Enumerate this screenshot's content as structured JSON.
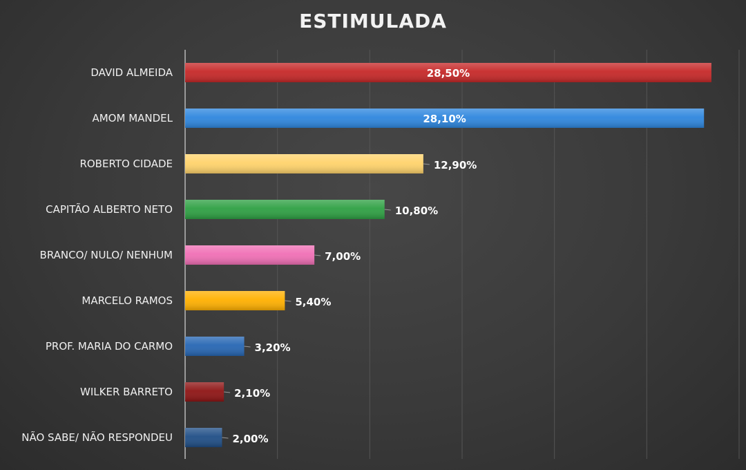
{
  "chart_data": {
    "type": "bar",
    "orientation": "horizontal",
    "title": "ESTIMULADA",
    "categories": [
      "DAVID ALMEIDA",
      "AMOM MANDEL",
      "ROBERTO CIDADE",
      "CAPITÃO ALBERTO NETO",
      "BRANCO/ NULO/ NENHUM",
      "MARCELO RAMOS",
      "PROF. MARIA DO CARMO",
      "WILKER BARRETO",
      "NÃO SABE/ NÃO RESPONDEU"
    ],
    "values": [
      28.5,
      28.1,
      12.9,
      10.8,
      7.0,
      5.4,
      3.2,
      2.1,
      2.0
    ],
    "value_labels": [
      "28,50%",
      "28,10%",
      "12,90%",
      "10,80%",
      "7,00%",
      "5,40%",
      "3,20%",
      "2,10%",
      "2,00%"
    ],
    "bar_colors": [
      "#c62828",
      "#2e86de",
      "#ffd36b",
      "#2ea043",
      "#f06fb5",
      "#ffb000",
      "#2666b3",
      "#8e1414",
      "#1f4e86"
    ],
    "xlim": [
      0,
      30
    ],
    "grid": true,
    "label_inside_bar": [
      true,
      true,
      false,
      false,
      false,
      false,
      false,
      false,
      false
    ]
  }
}
